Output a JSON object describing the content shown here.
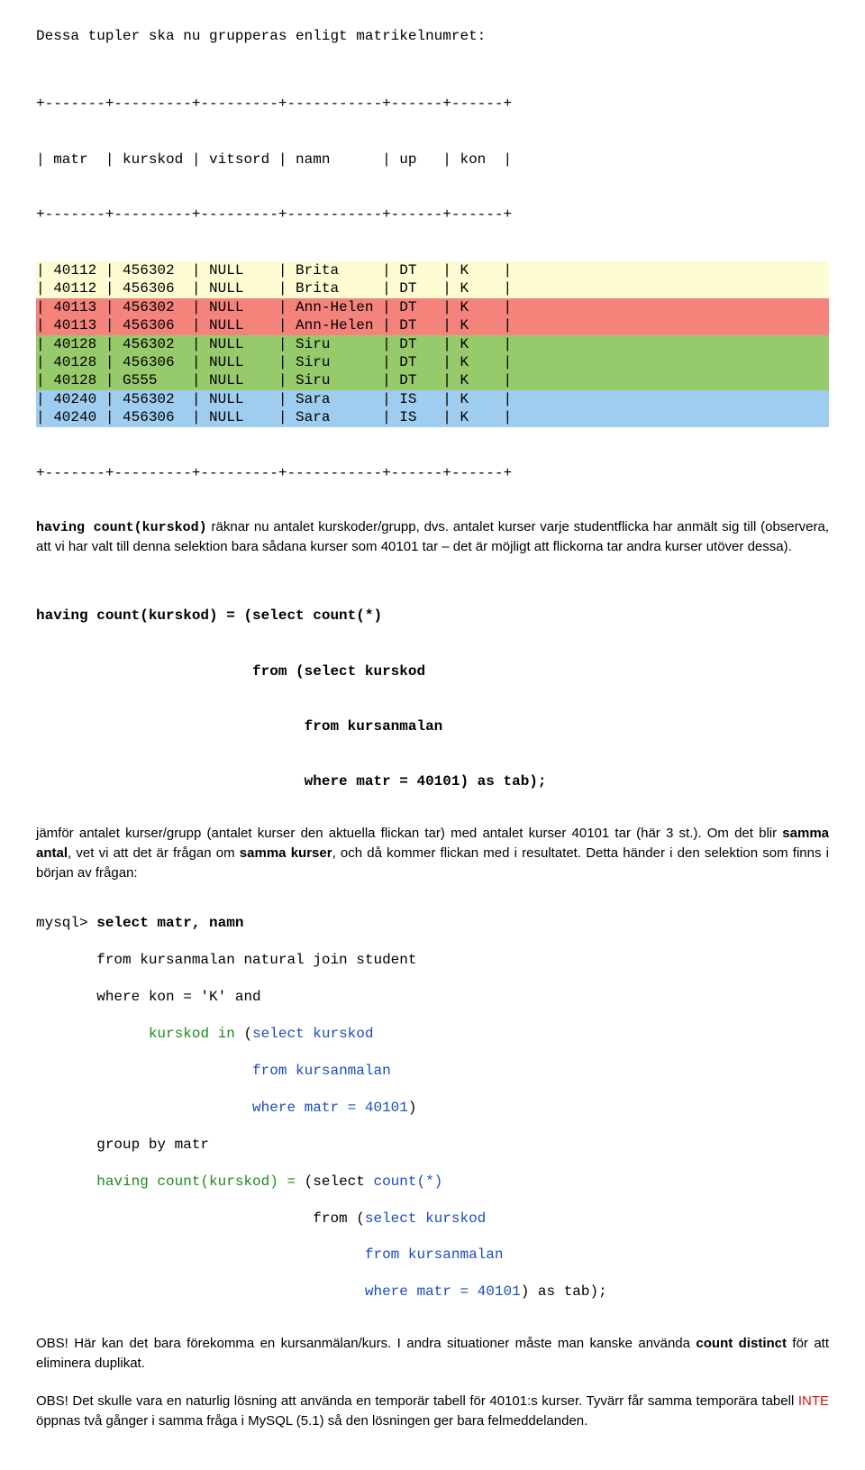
{
  "intro": "Dessa tupler ska nu grupperas enligt matrikelnumret:",
  "tbl": {
    "border_top": "+-------+---------+---------+-----------+------+------+",
    "header": "| matr  | kurskod | vitsord | namn      | up   | kon  |",
    "border_mid": "+-------+---------+---------+-----------+------+------+",
    "rows": [
      {
        "hl": "hl-yellow",
        "t": "| 40112 | 456302  | NULL    | Brita     | DT   | K    |"
      },
      {
        "hl": "hl-yellow",
        "t": "| 40112 | 456306  | NULL    | Brita     | DT   | K    |"
      },
      {
        "hl": "hl-red",
        "t": "| 40113 | 456302  | NULL    | Ann-Helen | DT   | K    |"
      },
      {
        "hl": "hl-red",
        "t": "| 40113 | 456306  | NULL    | Ann-Helen | DT   | K    |"
      },
      {
        "hl": "hl-green",
        "t": "| 40128 | 456302  | NULL    | Siru      | DT   | K    |"
      },
      {
        "hl": "hl-green",
        "t": "| 40128 | 456306  | NULL    | Siru      | DT   | K    |"
      },
      {
        "hl": "hl-green",
        "t": "| 40128 | G555    | NULL    | Siru      | DT   | K    |"
      },
      {
        "hl": "hl-blue",
        "t": "| 40240 | 456302  | NULL    | Sara      | IS   | K    |"
      },
      {
        "hl": "hl-blue",
        "t": "| 40240 | 456306  | NULL    | Sara      | IS   | K    |"
      }
    ],
    "border_bot": "+-------+---------+---------+-----------+------+------+"
  },
  "para1": {
    "mono_lead": "having count(kurskod)",
    "rest": " räknar nu antalet kurskoder/grupp, dvs. antalet kurser varje studentflicka har anmält sig till (observera, att vi har valt till denna selektion bara sådana kurser som 40101 tar – det är möjligt att flickorna tar andra kurser utöver dessa)."
  },
  "code1": [
    "having count(kurskod) = (select count(*)",
    "                         from (select kurskod",
    "                               from kursanmalan",
    "                               where matr = 40101) as tab);"
  ],
  "para2": {
    "a": "jämför antalet kurser/grupp (antalet kurser den aktuella flickan tar) med antalet kurser 40101 tar (här 3 st.). Om det blir ",
    "b": "samma antal",
    "c": ", vet vi att det är frågan om ",
    "d": "samma kurser",
    "e": ", och då kommer flickan med i resultatet. Detta händer i den selektion som finns i början av frågan:"
  },
  "sql": {
    "l0a": "mysql> ",
    "l0b": "select matr, namn",
    "l1": "       from kursanmalan natural join student",
    "l2": "       where kon = 'K' and",
    "l3a": "             ",
    "l3b": "kurskod in ",
    "l3c": "(",
    "l3d": "select kurskod",
    "l4a": "                         ",
    "l4b": "from kursanmalan",
    "l5a": "                         ",
    "l5b": "where matr = 40101",
    "l5c": ")",
    "l6": "       group by matr",
    "l7a": "       ",
    "l7b": "having count(kurskod) = ",
    "l7c": "(select ",
    "l7d": "count(*)",
    "l8a": "                                ",
    "l8b": "from (",
    "l8c": "select kurskod",
    "l9a": "                                      ",
    "l9b": "from kursanmalan",
    "l10a": "                                      ",
    "l10b": "where matr = 40101",
    "l10c": ") as tab);"
  },
  "para3": {
    "a": "OBS! Här kan det bara förekomma en kursanmälan/kurs. I andra situationer måste man kanske använda ",
    "b": "count distinct",
    "c": " för att eliminera duplikat."
  },
  "para4": {
    "a": "OBS! Det skulle vara en naturlig lösning att använda en temporär tabell för 40101:s kurser. Tyvärr får samma temporära tabell ",
    "b": "INTE",
    "c": " öppnas två gånger i samma fråga i MySQL (5.1) så den lösningen ger bara felmeddelanden."
  }
}
